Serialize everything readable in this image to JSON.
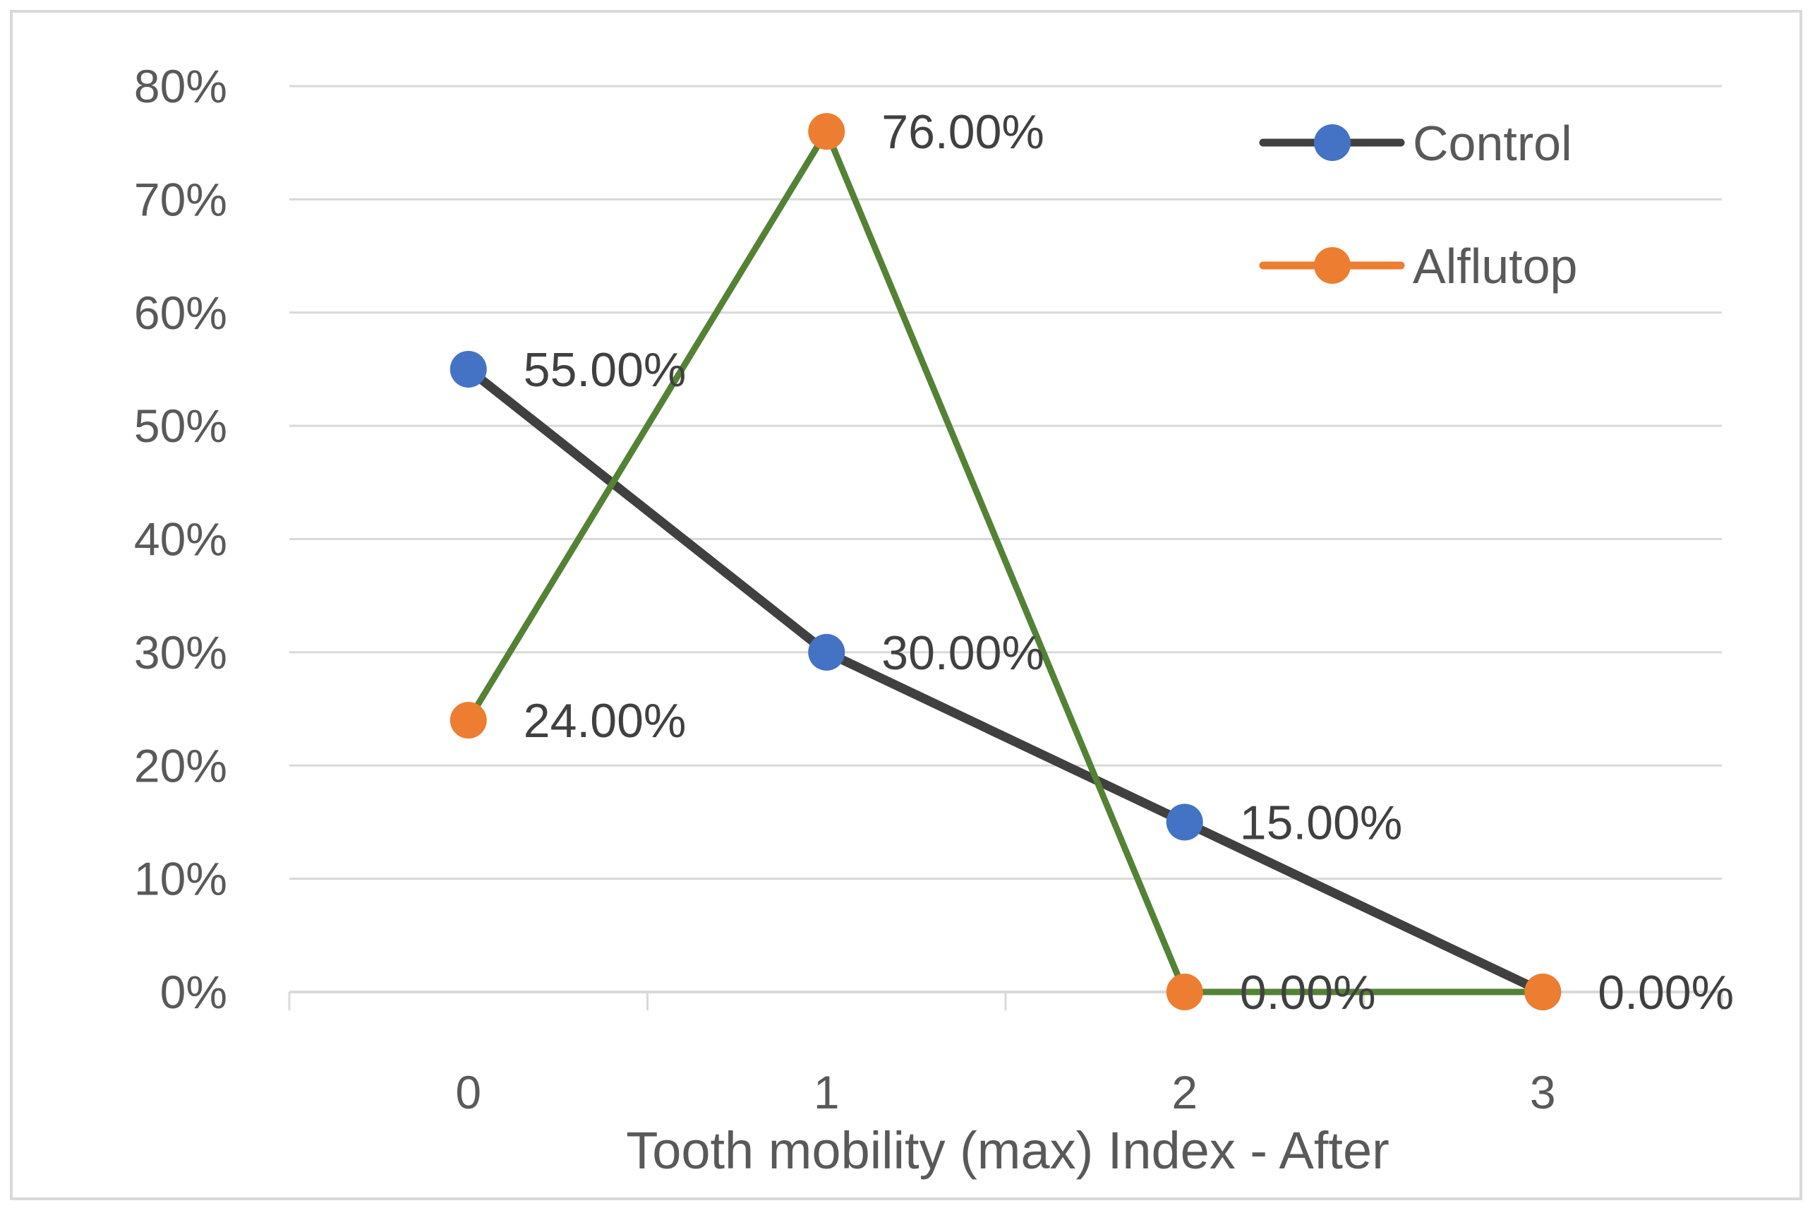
{
  "chart_data": {
    "type": "line",
    "title": "",
    "xlabel": "Tooth mobility (max) Index - After",
    "ylabel": "",
    "categories": [
      "0",
      "1",
      "2",
      "3"
    ],
    "ylim": [
      0,
      0.8
    ],
    "ytick_values": [
      0,
      0.1,
      0.2,
      0.3,
      0.4,
      0.5,
      0.6,
      0.7,
      0.8
    ],
    "ytick_labels": [
      "0%",
      "10%",
      "20%",
      "30%",
      "40%",
      "50%",
      "60%",
      "70%",
      "80%"
    ],
    "grid": true,
    "legend_position": "top-right",
    "series": [
      {
        "name": "Control",
        "values": [
          0.55,
          0.3,
          0.15,
          0.0
        ],
        "labels": [
          "55.00%",
          "30.00%",
          "15.00%",
          ""
        ],
        "line_color": "#404040",
        "marker_color": "#4472c4"
      },
      {
        "name": "Alflutop",
        "values": [
          0.24,
          0.76,
          0.0,
          0.0
        ],
        "labels": [
          "24.00%",
          "76.00%",
          "0.00%",
          "0.00%"
        ],
        "line_color": "#548235",
        "marker_color": "#ed7d31",
        "legend_line_color": "#ed7d31"
      }
    ]
  }
}
